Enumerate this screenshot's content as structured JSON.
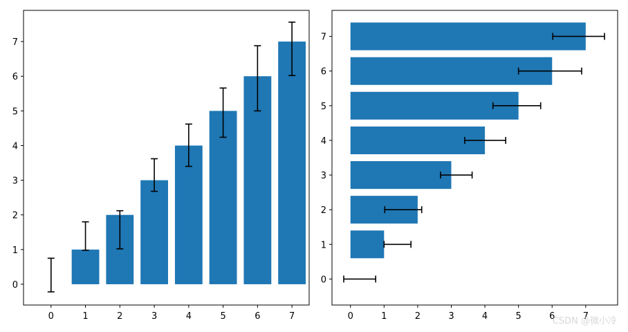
{
  "watermark": "CSDN @微小冷",
  "chart_data": [
    {
      "type": "bar",
      "orientation": "vertical",
      "categories": [
        0,
        1,
        2,
        3,
        4,
        5,
        6,
        7
      ],
      "values": [
        0,
        1,
        2,
        3,
        4,
        5,
        6,
        7
      ],
      "error_low": [
        -0.22,
        0.98,
        1.02,
        2.68,
        3.4,
        4.24,
        5.0,
        6.02
      ],
      "error_high": [
        0.75,
        1.8,
        2.12,
        3.62,
        4.62,
        5.66,
        6.88,
        7.56
      ],
      "xlim": [
        -0.8,
        7.5
      ],
      "ylim": [
        -0.6,
        7.9
      ],
      "xticks": [
        "0",
        "1",
        "2",
        "3",
        "4",
        "5",
        "6",
        "7"
      ],
      "yticks": [
        "0",
        "1",
        "2",
        "3",
        "4",
        "5",
        "6",
        "7"
      ],
      "bar_color": "#1f77b4",
      "error_color": "#000000",
      "grid": false
    },
    {
      "type": "bar",
      "orientation": "horizontal",
      "categories": [
        0,
        1,
        2,
        3,
        4,
        5,
        6,
        7
      ],
      "values": [
        0,
        1,
        2,
        3,
        4,
        5,
        6,
        7
      ],
      "error_low": [
        -0.2,
        1.0,
        1.02,
        2.68,
        3.4,
        4.24,
        5.0,
        6.02
      ],
      "error_high": [
        0.75,
        1.8,
        2.12,
        3.62,
        4.62,
        5.66,
        6.88,
        7.56
      ],
      "xlim": [
        -0.55,
        7.95
      ],
      "ylim": [
        -0.75,
        7.75
      ],
      "xticks": [
        "0",
        "1",
        "2",
        "3",
        "4",
        "5",
        "6",
        "7"
      ],
      "yticks": [
        "0",
        "1",
        "2",
        "3",
        "4",
        "5",
        "6",
        "7"
      ],
      "bar_color": "#1f77b4",
      "error_color": "#000000",
      "grid": false
    }
  ]
}
